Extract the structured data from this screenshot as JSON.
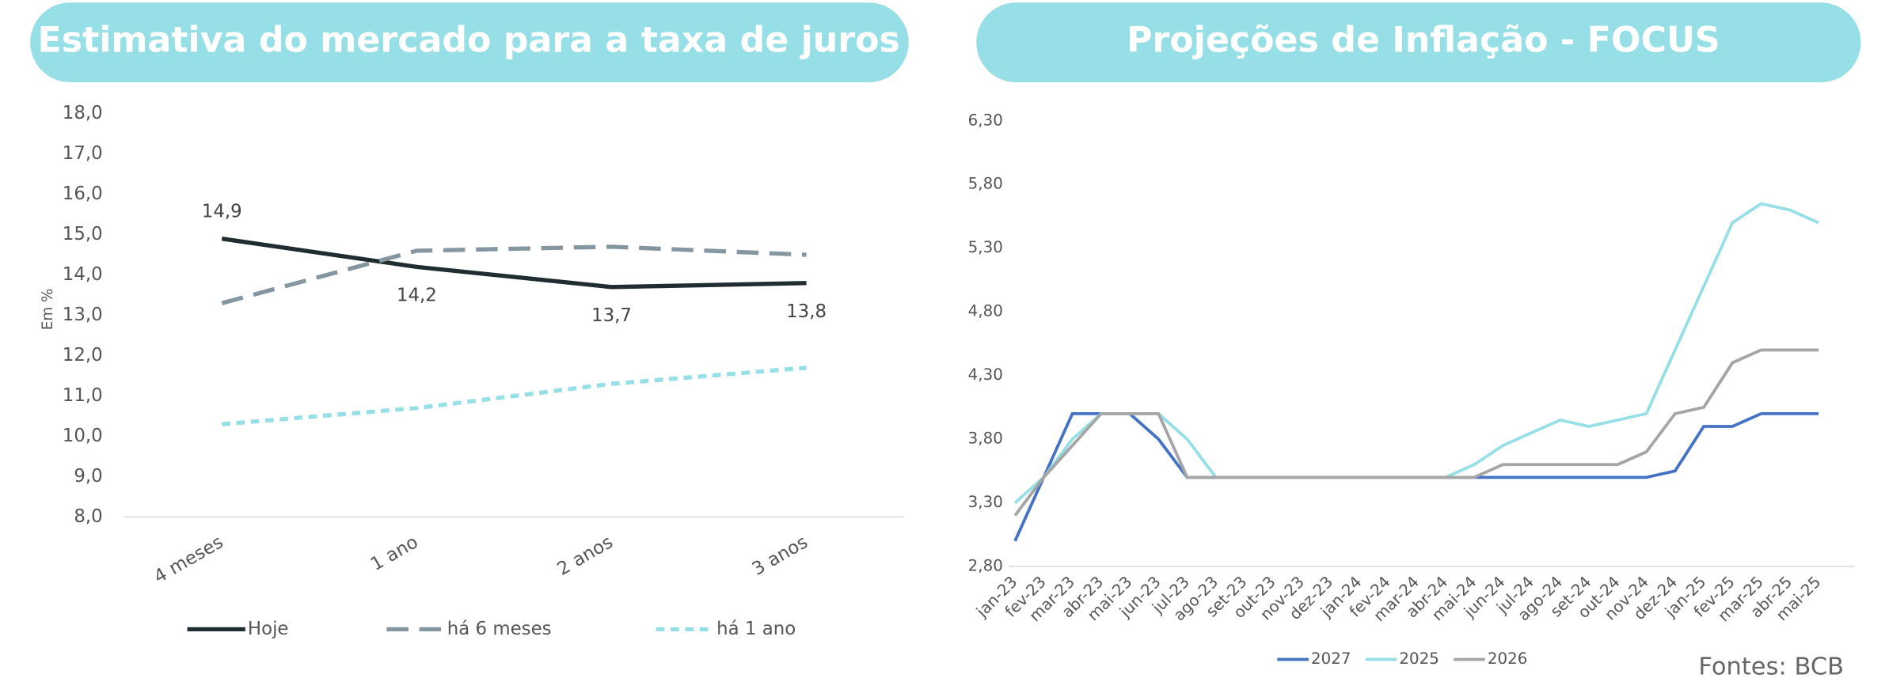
{
  "chart_data": [
    {
      "type": "line",
      "title": "Estimativa do mercado para a taxa de juros",
      "y_label": "Em %",
      "categories": [
        "4 meses",
        "1 ano",
        "2 anos",
        "3 anos"
      ],
      "series": [
        {
          "name": "Hoje",
          "color": "#1f2d30",
          "dash": "solid",
          "values": [
            14.9,
            14.2,
            13.7,
            13.8
          ],
          "value_labels": [
            "14,9",
            "14,2",
            "13,7",
            "13,8"
          ]
        },
        {
          "name": "há 6 meses",
          "color": "#8497a0",
          "dash": "long",
          "values": [
            13.3,
            14.6,
            14.7,
            14.5
          ]
        },
        {
          "name": "há 1 ano",
          "color": "#97dfe6",
          "dash": "short",
          "values": [
            10.3,
            10.7,
            11.3,
            11.7
          ]
        }
      ],
      "ylim": [
        8,
        18
      ],
      "yticks": [
        {
          "value": 8,
          "label": "8,0"
        },
        {
          "value": 9,
          "label": "9,0"
        },
        {
          "value": 10,
          "label": "10,0"
        },
        {
          "value": 11,
          "label": "11,0"
        },
        {
          "value": 12,
          "label": "12,0"
        },
        {
          "value": 13,
          "label": "13,0"
        },
        {
          "value": 14,
          "label": "14,0"
        },
        {
          "value": 15,
          "label": "15,0"
        },
        {
          "value": 16,
          "label": "16,0"
        },
        {
          "value": 17,
          "label": "17,0"
        },
        {
          "value": 18,
          "label": "18,0"
        }
      ]
    },
    {
      "type": "line",
      "title": "Projeções de Inflação - FOCUS",
      "source": "Fontes: BCB",
      "categories": [
        "jan-23",
        "fev-23",
        "mar-23",
        "abr-23",
        "mai-23",
        "jun-23",
        "jul-23",
        "ago-23",
        "set-23",
        "out-23",
        "nov-23",
        "dez-23",
        "jan-24",
        "fev-24",
        "mar-24",
        "abr-24",
        "mai-24",
        "jun-24",
        "jul-24",
        "ago-24",
        "set-24",
        "out-24",
        "nov-24",
        "dez-24",
        "jan-25",
        "fev-25",
        "mar-25",
        "abr-25",
        "mai-25"
      ],
      "series": [
        {
          "name": "2027",
          "color": "#4472c4",
          "dash": "solid",
          "values": [
            3.0,
            3.5,
            4.0,
            4.0,
            4.0,
            3.8,
            3.5,
            3.5,
            3.5,
            3.5,
            3.5,
            3.5,
            3.5,
            3.5,
            3.5,
            3.5,
            3.5,
            3.5,
            3.5,
            3.5,
            3.5,
            3.5,
            3.5,
            3.55,
            3.9,
            3.9,
            4.0,
            4.0,
            4.0
          ]
        },
        {
          "name": "2025",
          "color": "#97dfe6",
          "dash": "solid",
          "values": [
            3.3,
            3.5,
            3.8,
            4.0,
            4.0,
            4.0,
            3.8,
            3.5,
            3.5,
            3.5,
            3.5,
            3.5,
            3.5,
            3.5,
            3.5,
            3.5,
            3.6,
            3.75,
            3.85,
            3.95,
            3.9,
            3.95,
            4.0,
            4.5,
            5.0,
            5.5,
            5.65,
            5.6,
            5.5
          ]
        },
        {
          "name": "2026",
          "color": "#a5a5a5",
          "dash": "solid",
          "values": [
            3.2,
            3.5,
            3.75,
            4.0,
            4.0,
            4.0,
            3.5,
            3.5,
            3.5,
            3.5,
            3.5,
            3.5,
            3.5,
            3.5,
            3.5,
            3.5,
            3.5,
            3.6,
            3.6,
            3.6,
            3.6,
            3.6,
            3.7,
            4.0,
            4.05,
            4.4,
            4.5,
            4.5,
            4.5
          ]
        }
      ],
      "ylim": [
        2.8,
        6.3
      ],
      "yticks": [
        {
          "value": 2.8,
          "label": "2,80"
        },
        {
          "value": 3.3,
          "label": "3,30"
        },
        {
          "value": 3.8,
          "label": "3,80"
        },
        {
          "value": 4.3,
          "label": "4,30"
        },
        {
          "value": 4.8,
          "label": "4,80"
        },
        {
          "value": 5.3,
          "label": "5,30"
        },
        {
          "value": 5.8,
          "label": "5,80"
        },
        {
          "value": 6.3,
          "label": "6,30"
        }
      ]
    }
  ]
}
